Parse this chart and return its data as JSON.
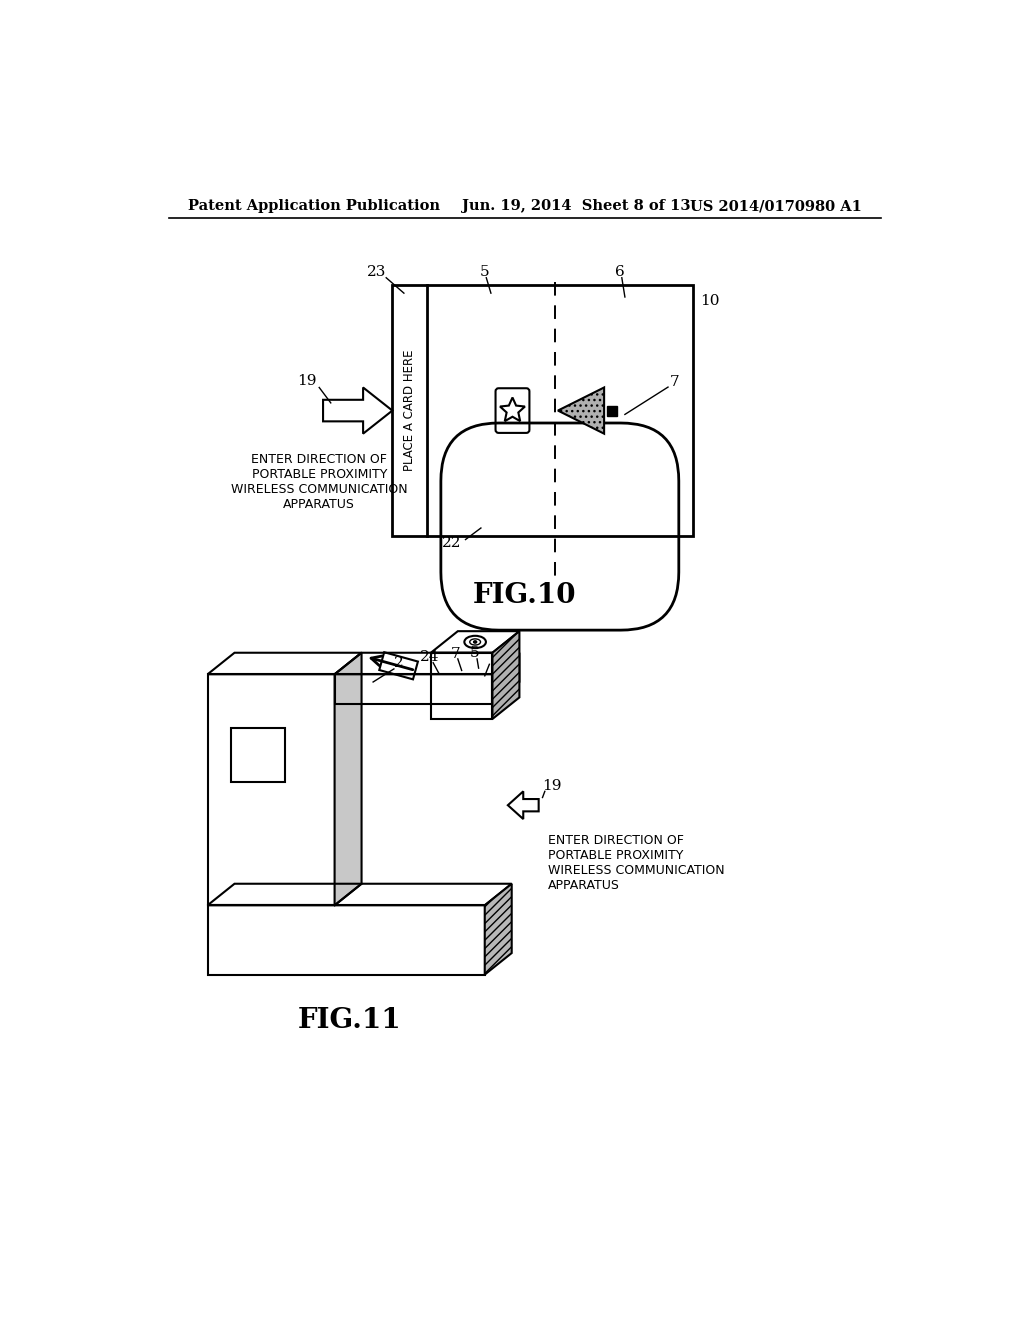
{
  "bg_color": "#ffffff",
  "header_left": "Patent Application Publication",
  "header_mid": "Jun. 19, 2014  Sheet 8 of 13",
  "header_right": "US 2014/0170980 A1",
  "fig10_label": "FIG.10",
  "fig11_label": "FIG.11",
  "enter_direction_text": "ENTER DIRECTION OF\nPORTABLE PROXIMITY\nWIRELESS COMMUNICATION\nAPPARATUS",
  "place_card_text": "PLACE A CARD HERE"
}
